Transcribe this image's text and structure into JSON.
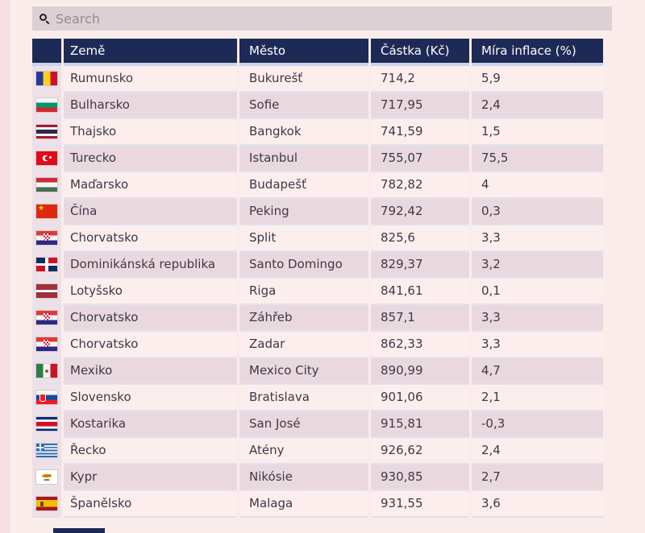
{
  "search": {
    "placeholder": "Search"
  },
  "table": {
    "columns": [
      "Země",
      "Město",
      "Částka (Kč)",
      "Míra inflace (%)"
    ],
    "rows": [
      {
        "flag": "romania",
        "country": "Rumunsko",
        "city": "Bukurešť",
        "amount": "714,2",
        "inflation": "5,9"
      },
      {
        "flag": "bulgaria",
        "country": "Bulharsko",
        "city": "Sofie",
        "amount": "717,95",
        "inflation": "2,4"
      },
      {
        "flag": "thailand",
        "country": "Thajsko",
        "city": "Bangkok",
        "amount": "741,59",
        "inflation": "1,5"
      },
      {
        "flag": "turkey",
        "country": "Turecko",
        "city": "Istanbul",
        "amount": "755,07",
        "inflation": "75,5"
      },
      {
        "flag": "hungary",
        "country": "Maďarsko",
        "city": "Budapešť",
        "amount": "782,82",
        "inflation": "4"
      },
      {
        "flag": "china",
        "country": "Čína",
        "city": "Peking",
        "amount": "792,42",
        "inflation": "0,3"
      },
      {
        "flag": "croatia",
        "country": "Chorvatsko",
        "city": "Split",
        "amount": "825,6",
        "inflation": "3,3"
      },
      {
        "flag": "dominican",
        "country": "Dominikánská republika",
        "city": "Santo Domingo",
        "amount": "829,37",
        "inflation": "3,2"
      },
      {
        "flag": "latvia",
        "country": "Lotyšsko",
        "city": "Riga",
        "amount": "841,61",
        "inflation": "0,1"
      },
      {
        "flag": "croatia",
        "country": "Chorvatsko",
        "city": "Záhřeb",
        "amount": "857,1",
        "inflation": "3,3"
      },
      {
        "flag": "croatia",
        "country": "Chorvatsko",
        "city": "Zadar",
        "amount": "862,33",
        "inflation": "3,3"
      },
      {
        "flag": "mexico",
        "country": "Mexiko",
        "city": "Mexico City",
        "amount": "890,99",
        "inflation": "4,7"
      },
      {
        "flag": "slovakia",
        "country": "Slovensko",
        "city": "Bratislava",
        "amount": "901,06",
        "inflation": "2,1"
      },
      {
        "flag": "costarica",
        "country": "Kostarika",
        "city": "San José",
        "amount": "915,81",
        "inflation": "-0,3"
      },
      {
        "flag": "greece",
        "country": "Řecko",
        "city": "Atény",
        "amount": "926,62",
        "inflation": "2,4"
      },
      {
        "flag": "cyprus",
        "country": "Kypr",
        "city": "Nikósie",
        "amount": "930,85",
        "inflation": "2,7"
      },
      {
        "flag": "spain",
        "country": "Španělsko",
        "city": "Malaga",
        "amount": "931,55",
        "inflation": "3,6"
      }
    ]
  },
  "colors": {
    "header_bg": "#1e2a56",
    "page_bg": "#fbecec",
    "row_base": "#fdeeee",
    "row_alt": "#e9d9df",
    "flag_cell_bg": "#eee0e5",
    "row_separator": "#dfe3ef",
    "header_separator": "#ccd5eb",
    "search_bg": "#dcd0d4",
    "header_text": "#ffffff",
    "body_text": "#3e3846"
  }
}
